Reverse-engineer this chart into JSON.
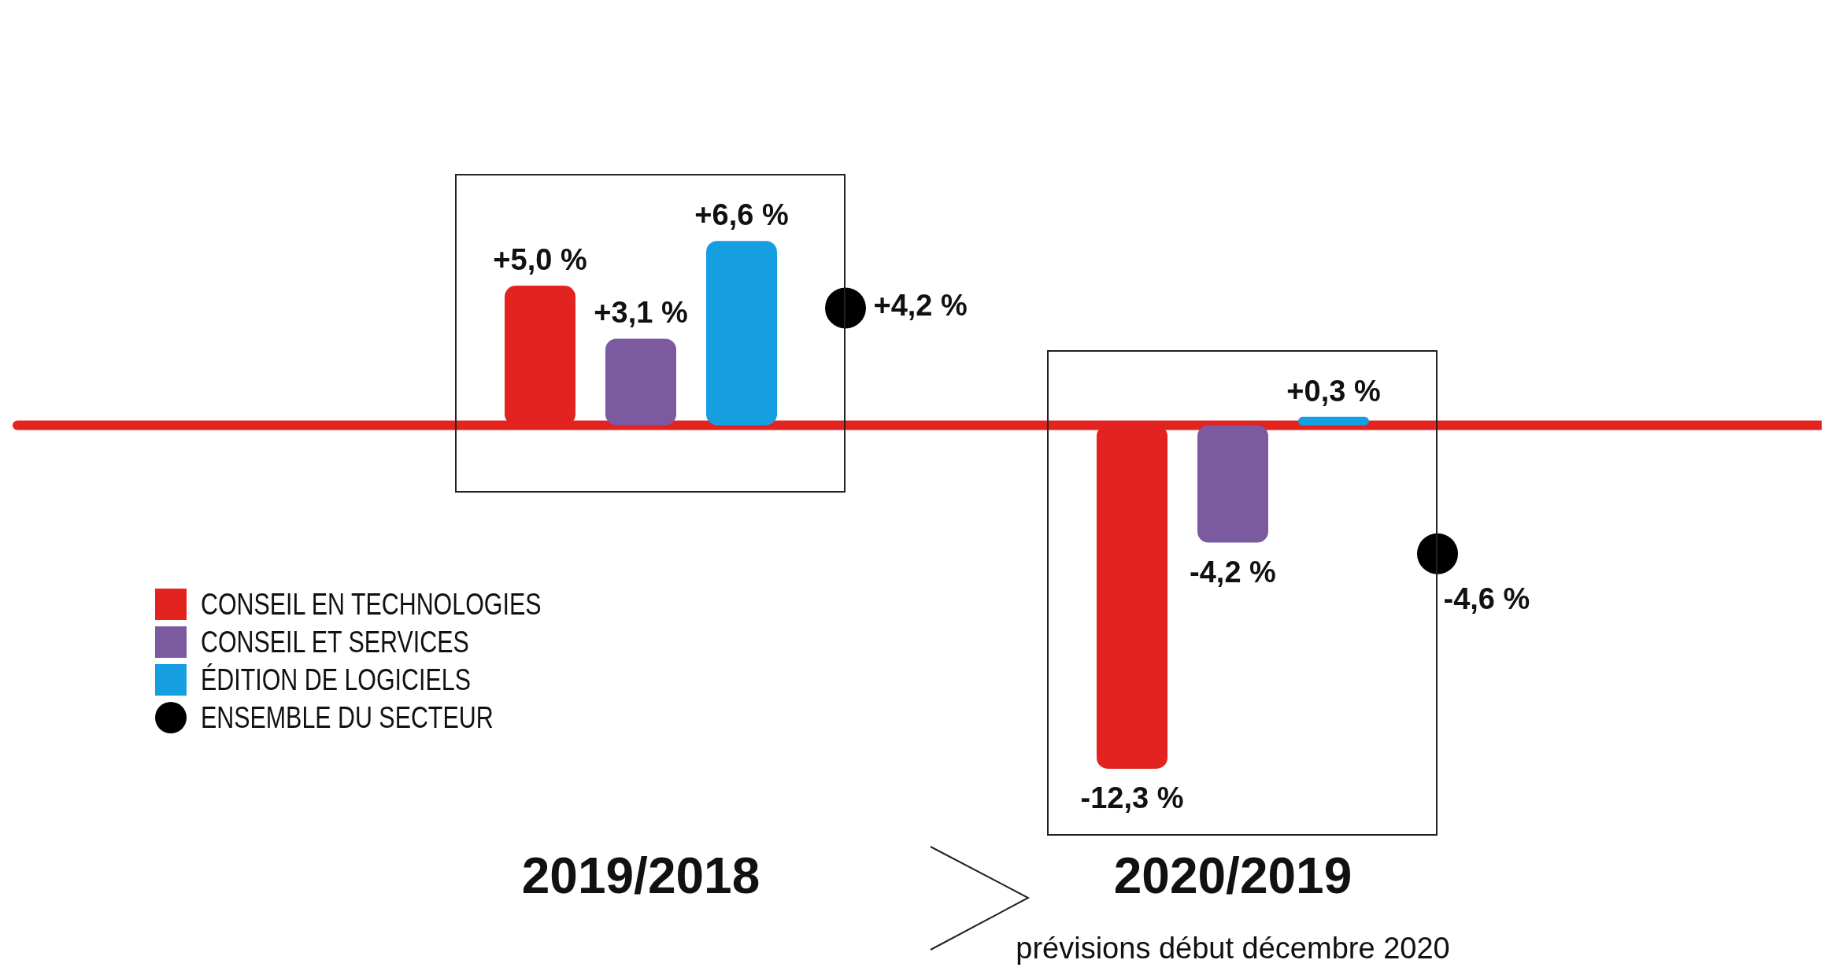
{
  "chart_data": {
    "type": "bar",
    "categories": [
      "2019/2018",
      "2020/2019"
    ],
    "series": [
      {
        "name": "CONSEIL EN TECHNOLOGIES",
        "color": "#e3231f",
        "values": [
          5.0,
          -12.3
        ],
        "value_labels": [
          "+5,0 %",
          "-12,3 %"
        ]
      },
      {
        "name": "CONSEIL ET SERVICES",
        "color": "#7b5aa0",
        "values": [
          3.1,
          -4.2
        ],
        "value_labels": [
          "+3,1 %",
          "-4,2 %"
        ]
      },
      {
        "name": "ÉDITION DE LOGICIELS",
        "color": "#169fe0",
        "values": [
          6.6,
          0.3
        ],
        "value_labels": [
          "+6,6 %",
          "+0,3 %"
        ]
      },
      {
        "name": "ENSEMBLE DU SECTEUR",
        "type": "scatter",
        "color": "#000000",
        "values": [
          4.2,
          -4.6
        ],
        "value_labels": [
          "+4,2 %",
          "-4,6 %"
        ]
      }
    ],
    "tick_labels": "x",
    "legend": "bottom left",
    "marker": "circle",
    "ref_lines": [
      {
        "axis": "y",
        "value": 0,
        "color": "#e3231f"
      }
    ],
    "annotations": [
      "prévisions début décembre 2020"
    ]
  }
}
